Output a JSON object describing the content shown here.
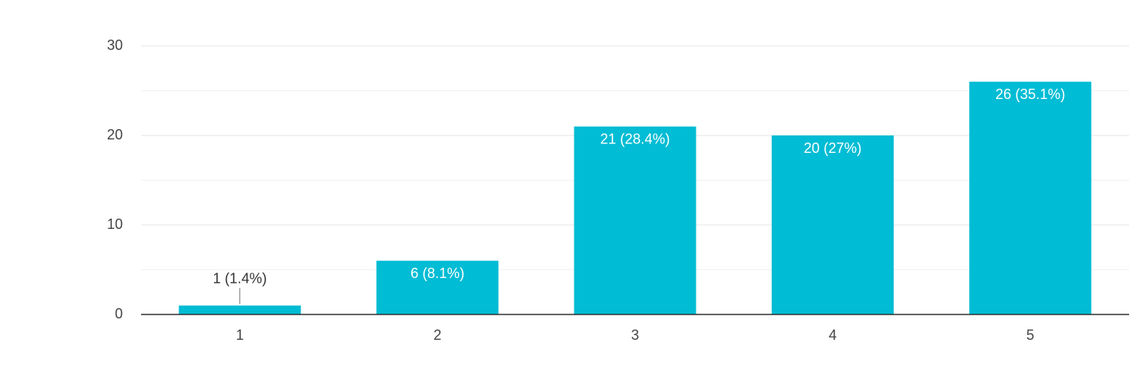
{
  "chart_data": {
    "type": "bar",
    "categories": [
      "1",
      "2",
      "3",
      "4",
      "5"
    ],
    "values": [
      1,
      6,
      21,
      20,
      26
    ],
    "value_labels": [
      "1 (1.4%)",
      "6 (8.1%)",
      "21 (28.4%)",
      "20 (27%)",
      "26 (35.1%)"
    ],
    "color": "#00bcd4",
    "ylim": [
      0,
      30
    ],
    "yticks": [
      0,
      10,
      20,
      30
    ],
    "minor_yticks": [
      5,
      15,
      25
    ],
    "grid": true
  }
}
